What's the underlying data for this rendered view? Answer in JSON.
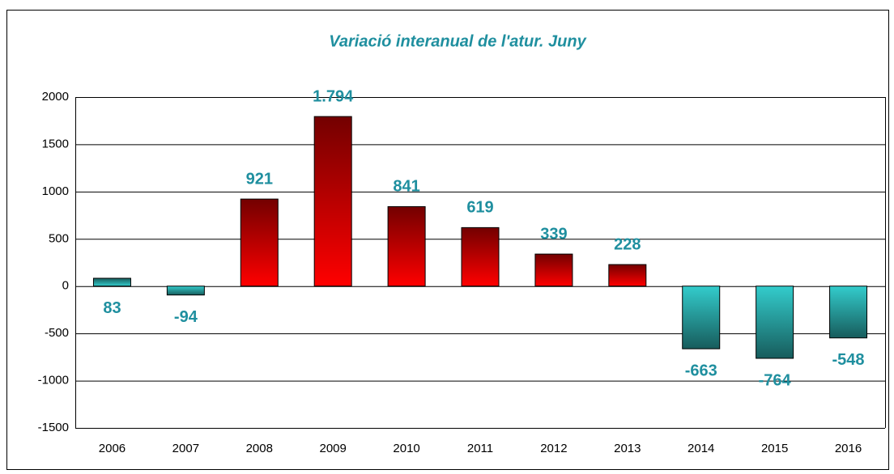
{
  "chart_data": {
    "type": "bar",
    "title": "Variació interanual de l'atur. Juny",
    "categories": [
      "2006",
      "2007",
      "2008",
      "2009",
      "2010",
      "2011",
      "2012",
      "2013",
      "2014",
      "2015",
      "2016"
    ],
    "values": [
      83,
      -94,
      921,
      1794,
      841,
      619,
      339,
      228,
      -663,
      -764,
      -548
    ],
    "value_labels": [
      "83",
      "-94",
      "921",
      "1.794",
      "841",
      "619",
      "339",
      "228",
      "-663",
      "-764",
      "-548"
    ],
    "colors": [
      "#33cccc",
      "#33cccc",
      "#ff0000",
      "#ff0000",
      "#ff0000",
      "#ff0000",
      "#ff0000",
      "#ff0000",
      "#33cccc",
      "#33cccc",
      "#33cccc"
    ],
    "label_color": "#1f8f9f",
    "ylim": [
      -1500,
      2000
    ],
    "yticks": [
      -1500,
      -1000,
      -500,
      0,
      500,
      1000,
      1500,
      2000
    ],
    "grid": true
  }
}
